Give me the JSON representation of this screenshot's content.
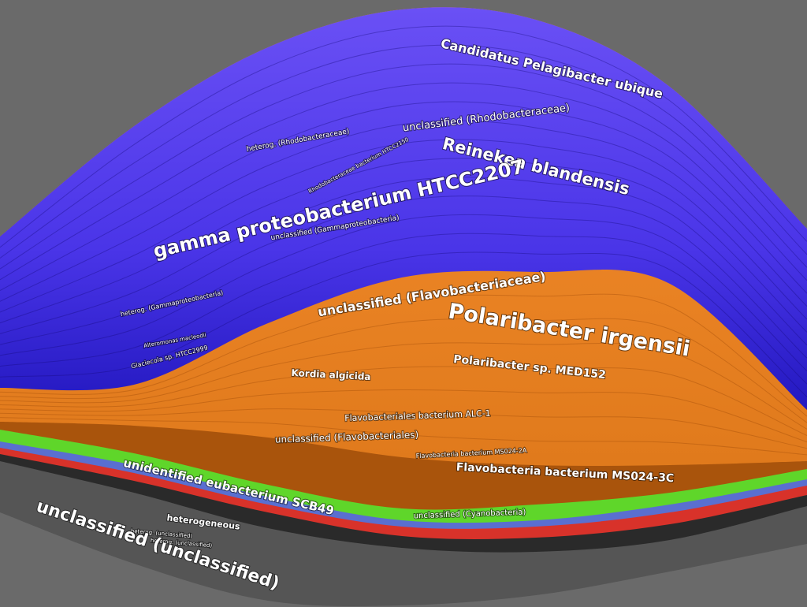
{
  "labels": [
    "Candidatus Pelagibacter ubique",
    "unclassified (Rhodobacteraceae)",
    "Reinekea blandensis",
    "gamma proteobacterium HTCC2207",
    "unclassified (Gammaproteobacteria)",
    "heterog. (Rhodobacteraceae)",
    "Rhodobacteraceae bacterium HTCC2150",
    "heterog. (Gammaproteobacteria)",
    "Alteromonas macleodii",
    "Glaciecola sp. HTCC2999",
    "unclassified (Flavobacteriaceae)",
    "Polaribacter irgensii",
    "Polaribacter sp. MED152",
    "Kordia algicida",
    "Flavobacteriales bacterium ALC-1",
    "unclassified (Flavobacteriales)",
    "Flavobacteria bacterium MS024-2A",
    "Flavobacteria bacterium MS024-3C",
    "unidentified eubacterium SCB49",
    "unclassified (Cyanobacteria)",
    "heterogeneous",
    "heterog. (unclassified)",
    "heterog. (unclassified)",
    "unclassified (unclassified)"
  ]
}
